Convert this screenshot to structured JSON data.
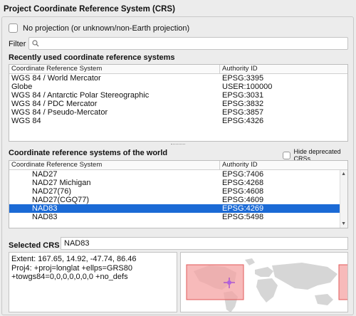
{
  "title": "Project Coordinate Reference System (CRS)",
  "no_projection": {
    "label": "No projection (or unknown/non-Earth projection)",
    "checked": false
  },
  "filter": {
    "label": "Filter",
    "value": "",
    "placeholder": ""
  },
  "recent": {
    "heading": "Recently used coordinate reference systems",
    "columns": [
      "Coordinate Reference System",
      "Authority ID"
    ],
    "rows": [
      {
        "name": "WGS 84 / World Mercator",
        "id": "EPSG:3395"
      },
      {
        "name": "Globe",
        "id": "USER:100000"
      },
      {
        "name": "WGS 84 / Antarctic Polar Stereographic",
        "id": "EPSG:3031"
      },
      {
        "name": "WGS 84 / PDC Mercator",
        "id": "EPSG:3832"
      },
      {
        "name": "WGS 84 / Pseudo-Mercator",
        "id": "EPSG:3857"
      },
      {
        "name": "WGS 84",
        "id": "EPSG:4326"
      }
    ]
  },
  "world": {
    "heading": "Coordinate reference systems of the world",
    "hide_deprecated": {
      "label": "Hide deprecated CRSs",
      "checked": false
    },
    "columns": [
      "Coordinate Reference System",
      "Authority ID"
    ],
    "rows": [
      {
        "name": "NAD27",
        "id": "EPSG:7406",
        "selected": false
      },
      {
        "name": "NAD27 Michigan",
        "id": "EPSG:4268",
        "selected": false
      },
      {
        "name": "NAD27(76)",
        "id": "EPSG:4608",
        "selected": false
      },
      {
        "name": "NAD27(CGQ77)",
        "id": "EPSG:4609",
        "selected": false
      },
      {
        "name": "NAD83",
        "id": "EPSG:4269",
        "selected": true
      },
      {
        "name": "NAD83",
        "id": "EPSG:5498",
        "selected": false
      }
    ]
  },
  "selected_crs": {
    "label": "Selected CRS",
    "value": "NAD83"
  },
  "details": {
    "extent": "Extent: 167.65, 14.92, -47.74, 86.46",
    "proj4_line1": "Proj4: +proj=longlat +ellps=GRS80",
    "proj4_line2": "+towgs84=0,0,0,0,0,0,0 +no_defs"
  },
  "colors": {
    "selection": "#1b6ad5",
    "extent_fill": "#f4a3a3",
    "extent_stroke": "#e05a5a",
    "crosshair": "#a040d0"
  }
}
